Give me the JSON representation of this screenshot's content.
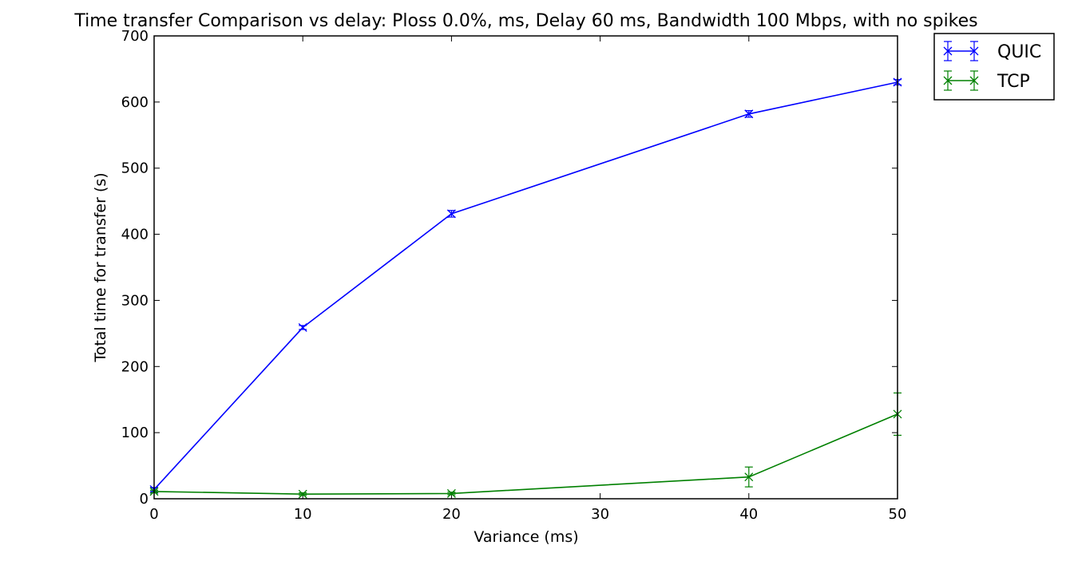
{
  "chart_data": {
    "type": "line",
    "title": "Time transfer Comparison vs delay: Ploss 0.0%, ms, Delay 60 ms, Bandwidth 100 Mbps, with no spikes",
    "xlabel": "Variance (ms)",
    "ylabel": "Total time for transfer (s)",
    "xlim": [
      0,
      50
    ],
    "ylim": [
      0,
      700
    ],
    "xticks": [
      0,
      10,
      20,
      30,
      40,
      50
    ],
    "yticks": [
      0,
      100,
      200,
      300,
      400,
      500,
      600,
      700
    ],
    "grid": false,
    "legend_position": "outside-top-right",
    "x": [
      0,
      10,
      20,
      40,
      50
    ],
    "series": [
      {
        "name": "QUIC",
        "color": "#0000ff",
        "marker": "x",
        "values": [
          14,
          259,
          431,
          582,
          630
        ],
        "errors": [
          3,
          3,
          5,
          5,
          4
        ]
      },
      {
        "name": "TCP",
        "color": "#008000",
        "marker": "x",
        "values": [
          11,
          7,
          8,
          33,
          128
        ],
        "errors": [
          2,
          2,
          2,
          15,
          32
        ]
      }
    ]
  }
}
